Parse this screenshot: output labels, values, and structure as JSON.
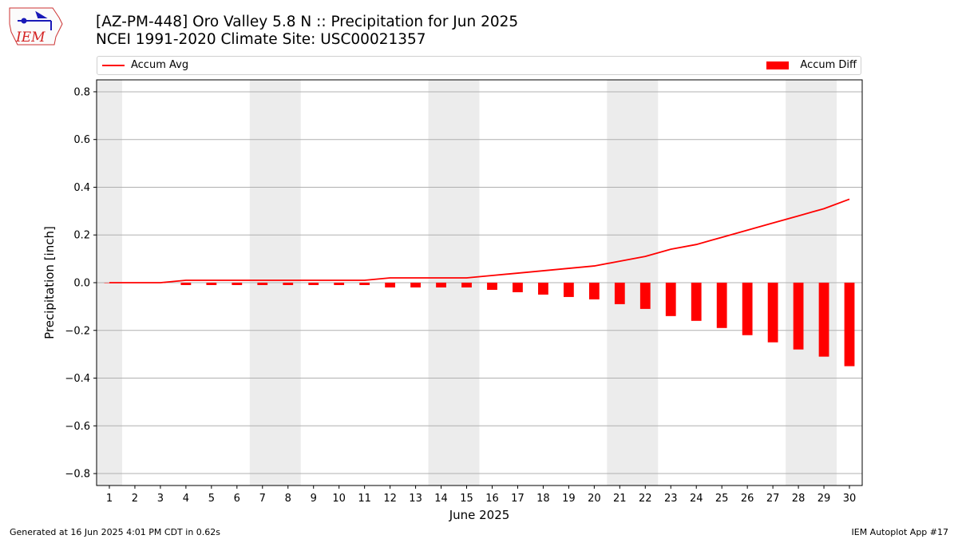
{
  "header": {
    "title_line1": "[AZ-PM-448] Oro Valley 5.8 N :: Precipitation for Jun 2025",
    "title_line2": "NCEI 1991-2020 Climate Site: USC00021357"
  },
  "logo": {
    "text": "IEM"
  },
  "legend": {
    "line_label": "Accum Avg",
    "bar_label": "Accum Diff",
    "placement": "top, full width"
  },
  "footer": {
    "generated": "Generated at 16 Jun 2025 4:01 PM CDT in 0.62s",
    "app": "IEM Autoplot App #17"
  },
  "chart_data": {
    "type": "bar",
    "title": "[AZ-PM-448] Oro Valley 5.8 N :: Precipitation for Jun 2025",
    "subtitle": "NCEI 1991-2020 Climate Site: USC00021357",
    "xlabel": "June 2025",
    "ylabel": "Precipitation [inch]",
    "ylim": [
      -0.85,
      0.85
    ],
    "xlim": [
      0.5,
      30.5
    ],
    "yticks": [
      -0.8,
      -0.6,
      -0.4,
      -0.2,
      0.0,
      0.2,
      0.4,
      0.6,
      0.8
    ],
    "ytick_labels": [
      "−0.8",
      "−0.6",
      "−0.4",
      "−0.2",
      "0.0",
      "0.2",
      "0.4",
      "0.6",
      "0.8"
    ],
    "categories": [
      "1",
      "2",
      "3",
      "4",
      "5",
      "6",
      "7",
      "8",
      "9",
      "10",
      "11",
      "12",
      "13",
      "14",
      "15",
      "16",
      "17",
      "18",
      "19",
      "20",
      "21",
      "22",
      "23",
      "24",
      "25",
      "26",
      "27",
      "28",
      "29",
      "30"
    ],
    "series": [
      {
        "name": "Accum Avg",
        "kind": "line",
        "color": "#ff0000",
        "values": [
          0.0,
          0.0,
          0.0,
          0.01,
          0.01,
          0.01,
          0.01,
          0.01,
          0.01,
          0.01,
          0.01,
          0.02,
          0.02,
          0.02,
          0.02,
          0.03,
          0.04,
          0.05,
          0.06,
          0.07,
          0.09,
          0.11,
          0.14,
          0.16,
          0.19,
          0.22,
          0.25,
          0.28,
          0.31,
          0.35
        ]
      },
      {
        "name": "Accum Diff",
        "kind": "bar",
        "color": "#ff0000",
        "values": [
          0.0,
          0.0,
          0.0,
          -0.01,
          -0.01,
          -0.01,
          -0.01,
          -0.01,
          -0.01,
          -0.01,
          -0.01,
          -0.02,
          -0.02,
          -0.02,
          -0.02,
          -0.03,
          -0.04,
          -0.05,
          -0.06,
          -0.07,
          -0.09,
          -0.11,
          -0.14,
          -0.16,
          -0.19,
          -0.22,
          -0.25,
          -0.28,
          -0.31,
          -0.35
        ]
      }
    ],
    "weekend_bands": [
      [
        0.5,
        1.5
      ],
      [
        6.5,
        8.5
      ],
      [
        13.5,
        15.5
      ],
      [
        20.5,
        22.5
      ],
      [
        27.5,
        29.5
      ]
    ],
    "band_color": "#ececec",
    "grid": "horizontal"
  }
}
